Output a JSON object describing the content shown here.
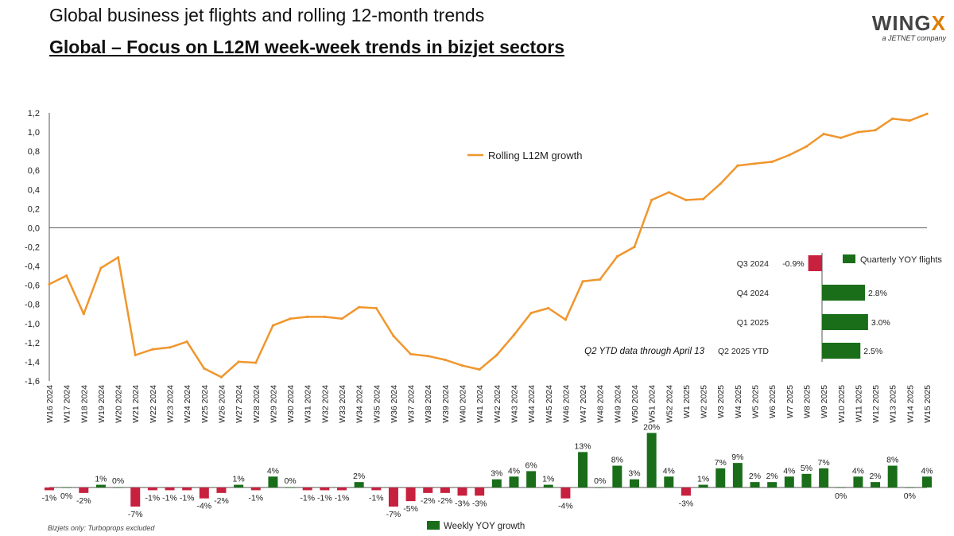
{
  "header": {
    "title": "Global business jet flights and rolling 12-month trends",
    "subtitle": "Global – Focus on L12M week-week trends in bizjet sectors"
  },
  "logo": {
    "brand_main": "WING",
    "brand_x": "X",
    "tagline": "a JETNET company"
  },
  "footnote": "Bizjets only: Turboprops excluded",
  "colors": {
    "line": "#f0962d",
    "positive": "#1a6e1a",
    "negative": "#c8203f",
    "axis": "#555555"
  },
  "chart_data": [
    {
      "type": "line",
      "series": [
        {
          "name": "Rolling L12M growth",
          "values": [
            -0.59,
            -0.5,
            -0.9,
            -0.42,
            -0.31,
            -1.33,
            -1.27,
            -1.25,
            -1.19,
            -1.47,
            -1.56,
            -1.4,
            -1.41,
            -1.02,
            -0.95,
            -0.93,
            -0.93,
            -0.95,
            -0.83,
            -0.84,
            -1.13,
            -1.32,
            -1.34,
            -1.38,
            -1.44,
            -1.48,
            -1.33,
            -1.12,
            -0.89,
            -0.84,
            -0.96,
            -0.56,
            -0.54,
            -0.3,
            -0.2,
            0.29,
            0.37,
            0.29,
            0.3,
            0.46,
            0.65,
            0.67,
            0.69,
            0.76,
            0.85,
            0.98,
            0.94,
            1.0,
            1.02,
            1.14,
            1.12,
            1.19
          ]
        }
      ],
      "categories": [
        "W16 2024",
        "W17 2024",
        "W18 2024",
        "W19 2024",
        "W20 2024",
        "W21 2024",
        "W22 2024",
        "W23 2024",
        "W24 2024",
        "W25 2024",
        "W26 2024",
        "W27 2024",
        "W28 2024",
        "W29 2024",
        "W30 2024",
        "W31 2024",
        "W32 2024",
        "W33 2024",
        "W34 2024",
        "W35 2024",
        "W36 2024",
        "W37 2024",
        "W38 2024",
        "W39 2024",
        "W40 2024",
        "W41 2024",
        "W42 2024",
        "W43 2024",
        "W44 2024",
        "W45 2024",
        "W46 2024",
        "W47 2024",
        "W48 2024",
        "W49 2024",
        "W50 2024",
        "W51 2024",
        "W52 2024",
        "W1 2025",
        "W2 2025",
        "W3 2025",
        "W4 2025",
        "W5 2025",
        "W6 2025",
        "W7 2025",
        "W8 2025",
        "W9 2025",
        "W10 2025",
        "W11 2025",
        "W12 2025",
        "W13 2025",
        "W14 2025",
        "W15 2025"
      ],
      "yticks": [
        "1,2",
        "1,0",
        "0,8",
        "0,6",
        "0,4",
        "0,2",
        "0,0",
        "-0,2",
        "-0,4",
        "-0,6",
        "-0,8",
        "-1,0",
        "-1,2",
        "-1,4",
        "-1,6"
      ],
      "ylim": [
        -1.6,
        1.2
      ],
      "grid": false,
      "legend_position": "top-center"
    },
    {
      "type": "bar",
      "title": "Weekly YOY growth",
      "values": [
        -1,
        0,
        -2,
        1,
        0,
        -7,
        -1,
        -1,
        -1,
        -4,
        -2,
        1,
        -1,
        4,
        0,
        -1,
        -1,
        -1,
        2,
        -1,
        -7,
        -5,
        -2,
        -2,
        -3,
        -3,
        3,
        4,
        6,
        1,
        -4,
        13,
        0,
        8,
        3,
        20,
        4,
        -3,
        1,
        7,
        9,
        2,
        2,
        4,
        5,
        7,
        0,
        4,
        2,
        8,
        0,
        4
      ],
      "labels": [
        "-1%",
        "0%",
        "-2%",
        "1%",
        "0%",
        "-7%",
        "-1%",
        "-1%",
        "-1%",
        "-4%",
        "-2%",
        "1%",
        "-1%",
        "4%",
        "0%",
        "-1%",
        "-1%",
        "-1%",
        "2%",
        "-1%",
        "-7%",
        "-5%",
        "-2%",
        "-2%",
        "-3%",
        "-3%",
        "3%",
        "4%",
        "6%",
        "1%",
        "-4%",
        "13%",
        "0%",
        "8%",
        "3%",
        "20%",
        "4%",
        "-3%",
        "1%",
        "7%",
        "9%",
        "2%",
        "2%",
        "4%",
        "5%",
        "7%",
        "0%",
        "4%",
        "2%",
        "8%",
        "0%",
        "4%"
      ],
      "legend_position": "bottom-center"
    },
    {
      "type": "bar",
      "orientation": "horizontal",
      "title": "Quarterly YOY flights",
      "categories": [
        "Q3 2024",
        "Q4 2024",
        "Q1 2025",
        "Q2 2025 YTD"
      ],
      "values": [
        -0.9,
        2.8,
        3.0,
        2.5
      ],
      "labels": [
        "-0.9%",
        "2.8%",
        "3.0%",
        "2.5%"
      ],
      "annotation": "Q2 YTD data through April 13",
      "legend_position": "top-right"
    }
  ]
}
